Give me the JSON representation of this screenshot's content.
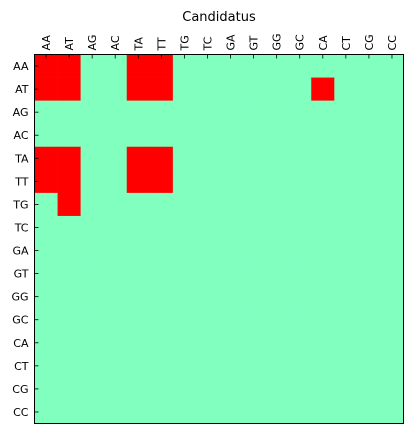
{
  "chart_data": {
    "type": "heatmap",
    "title": "Candidatus",
    "x_categories": [
      "AA",
      "AT",
      "AG",
      "AC",
      "TA",
      "TT",
      "TG",
      "TC",
      "GA",
      "GT",
      "GG",
      "GC",
      "CA",
      "CT",
      "CG",
      "CC"
    ],
    "y_categories": [
      "AA",
      "AT",
      "AG",
      "AC",
      "TA",
      "TT",
      "TG",
      "TC",
      "GA",
      "GT",
      "GG",
      "GC",
      "CA",
      "CT",
      "CG",
      "CC"
    ],
    "x_tick_position": "top",
    "colors": {
      "0": "#80ffbf",
      "1": "#ff0000"
    },
    "values": [
      [
        1,
        1,
        0,
        0,
        1,
        1,
        0,
        0,
        0,
        0,
        0,
        0,
        0,
        0,
        0,
        0
      ],
      [
        1,
        1,
        0,
        0,
        1,
        1,
        0,
        0,
        0,
        0,
        0,
        0,
        1,
        0,
        0,
        0
      ],
      [
        0,
        0,
        0,
        0,
        0,
        0,
        0,
        0,
        0,
        0,
        0,
        0,
        0,
        0,
        0,
        0
      ],
      [
        0,
        0,
        0,
        0,
        0,
        0,
        0,
        0,
        0,
        0,
        0,
        0,
        0,
        0,
        0,
        0
      ],
      [
        1,
        1,
        0,
        0,
        1,
        1,
        0,
        0,
        0,
        0,
        0,
        0,
        0,
        0,
        0,
        0
      ],
      [
        1,
        1,
        0,
        0,
        1,
        1,
        0,
        0,
        0,
        0,
        0,
        0,
        0,
        0,
        0,
        0
      ],
      [
        0,
        1,
        0,
        0,
        0,
        0,
        0,
        0,
        0,
        0,
        0,
        0,
        0,
        0,
        0,
        0
      ],
      [
        0,
        0,
        0,
        0,
        0,
        0,
        0,
        0,
        0,
        0,
        0,
        0,
        0,
        0,
        0,
        0
      ],
      [
        0,
        0,
        0,
        0,
        0,
        0,
        0,
        0,
        0,
        0,
        0,
        0,
        0,
        0,
        0,
        0
      ],
      [
        0,
        0,
        0,
        0,
        0,
        0,
        0,
        0,
        0,
        0,
        0,
        0,
        0,
        0,
        0,
        0
      ],
      [
        0,
        0,
        0,
        0,
        0,
        0,
        0,
        0,
        0,
        0,
        0,
        0,
        0,
        0,
        0,
        0
      ],
      [
        0,
        0,
        0,
        0,
        0,
        0,
        0,
        0,
        0,
        0,
        0,
        0,
        0,
        0,
        0,
        0
      ],
      [
        0,
        0,
        0,
        0,
        0,
        0,
        0,
        0,
        0,
        0,
        0,
        0,
        0,
        0,
        0,
        0
      ],
      [
        0,
        0,
        0,
        0,
        0,
        0,
        0,
        0,
        0,
        0,
        0,
        0,
        0,
        0,
        0,
        0
      ],
      [
        0,
        0,
        0,
        0,
        0,
        0,
        0,
        0,
        0,
        0,
        0,
        0,
        0,
        0,
        0,
        0
      ],
      [
        0,
        0,
        0,
        0,
        0,
        0,
        0,
        0,
        0,
        0,
        0,
        0,
        0,
        0,
        0,
        0
      ]
    ]
  }
}
